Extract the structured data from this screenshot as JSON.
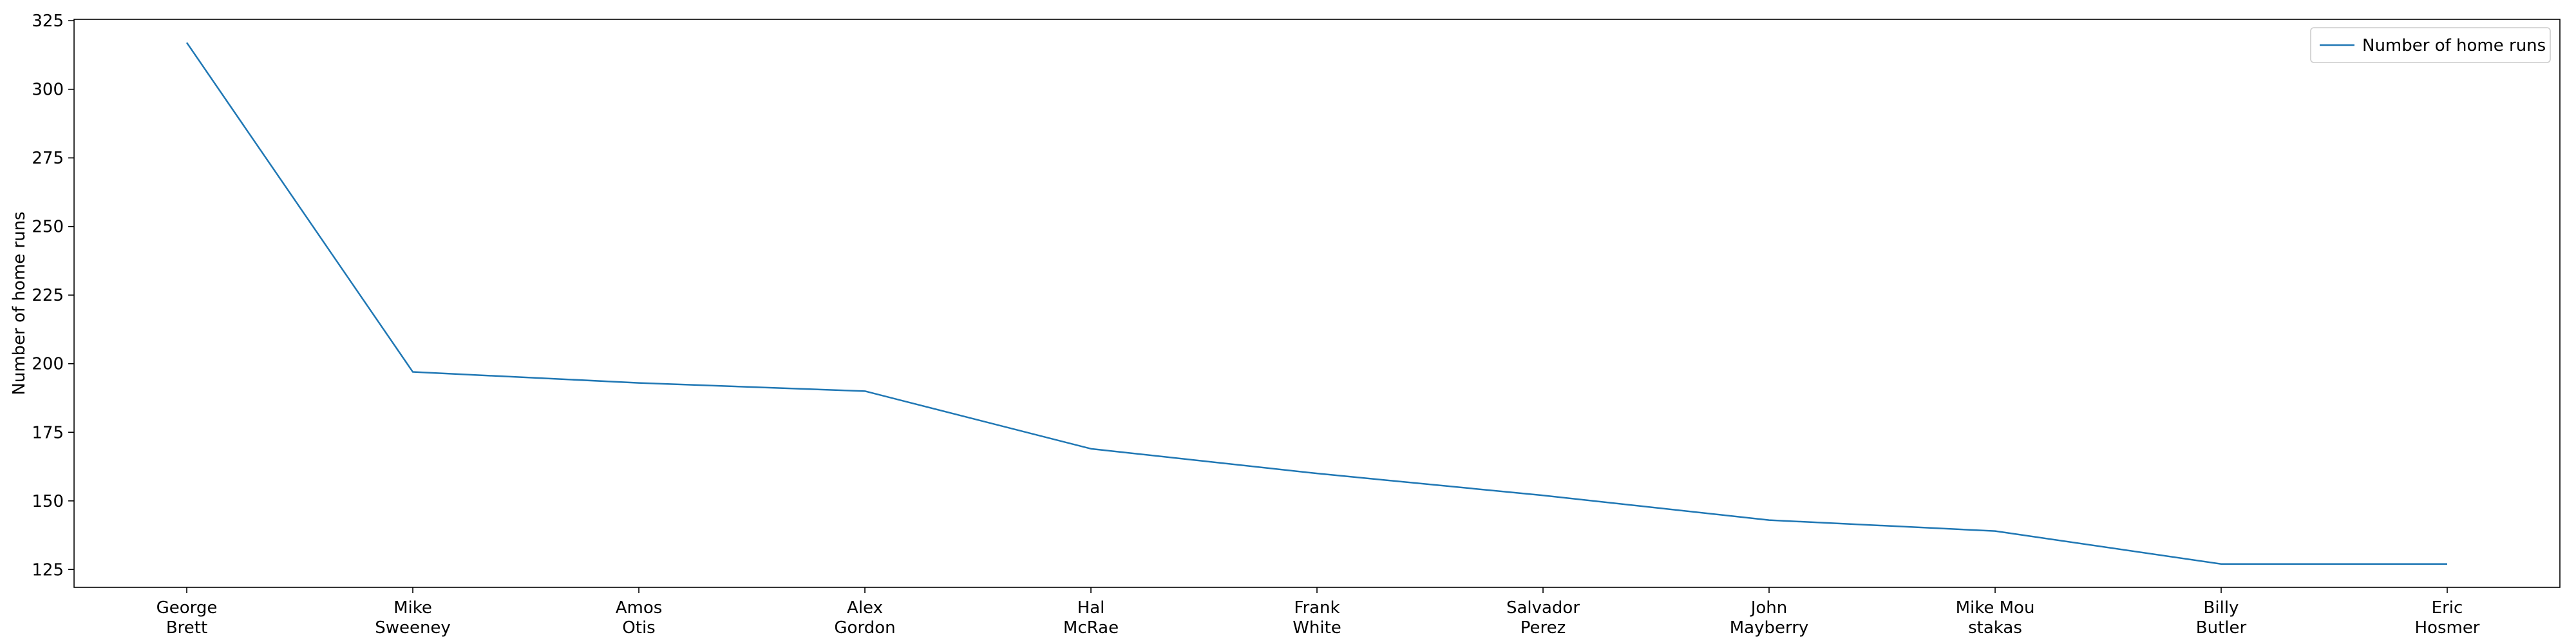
{
  "chart_data": {
    "type": "line",
    "title": "",
    "xlabel": "",
    "ylabel": "Number of home runs",
    "categories": [
      [
        "George",
        "Brett"
      ],
      [
        "Mike",
        "Sweeney"
      ],
      [
        "Amos",
        "Otis"
      ],
      [
        "Alex",
        "Gordon"
      ],
      [
        "Hal",
        "McRae"
      ],
      [
        "Frank",
        "White"
      ],
      [
        "Salvador",
        "Perez"
      ],
      [
        "John",
        "Mayberry"
      ],
      [
        "Mike Mou",
        "stakas"
      ],
      [
        "Billy",
        "Butler"
      ],
      [
        "Eric",
        "Hosmer"
      ]
    ],
    "series": [
      {
        "name": "Number of home runs",
        "values": [
          317,
          197,
          193,
          190,
          169,
          160,
          152,
          143,
          139,
          127,
          127
        ],
        "color": "#1f77b4"
      }
    ],
    "ylim": [
      118.5,
      325.5
    ],
    "yticks": [
      125,
      150,
      175,
      200,
      225,
      250,
      275,
      300,
      325
    ],
    "grid": false,
    "legend_position": "upper right"
  }
}
